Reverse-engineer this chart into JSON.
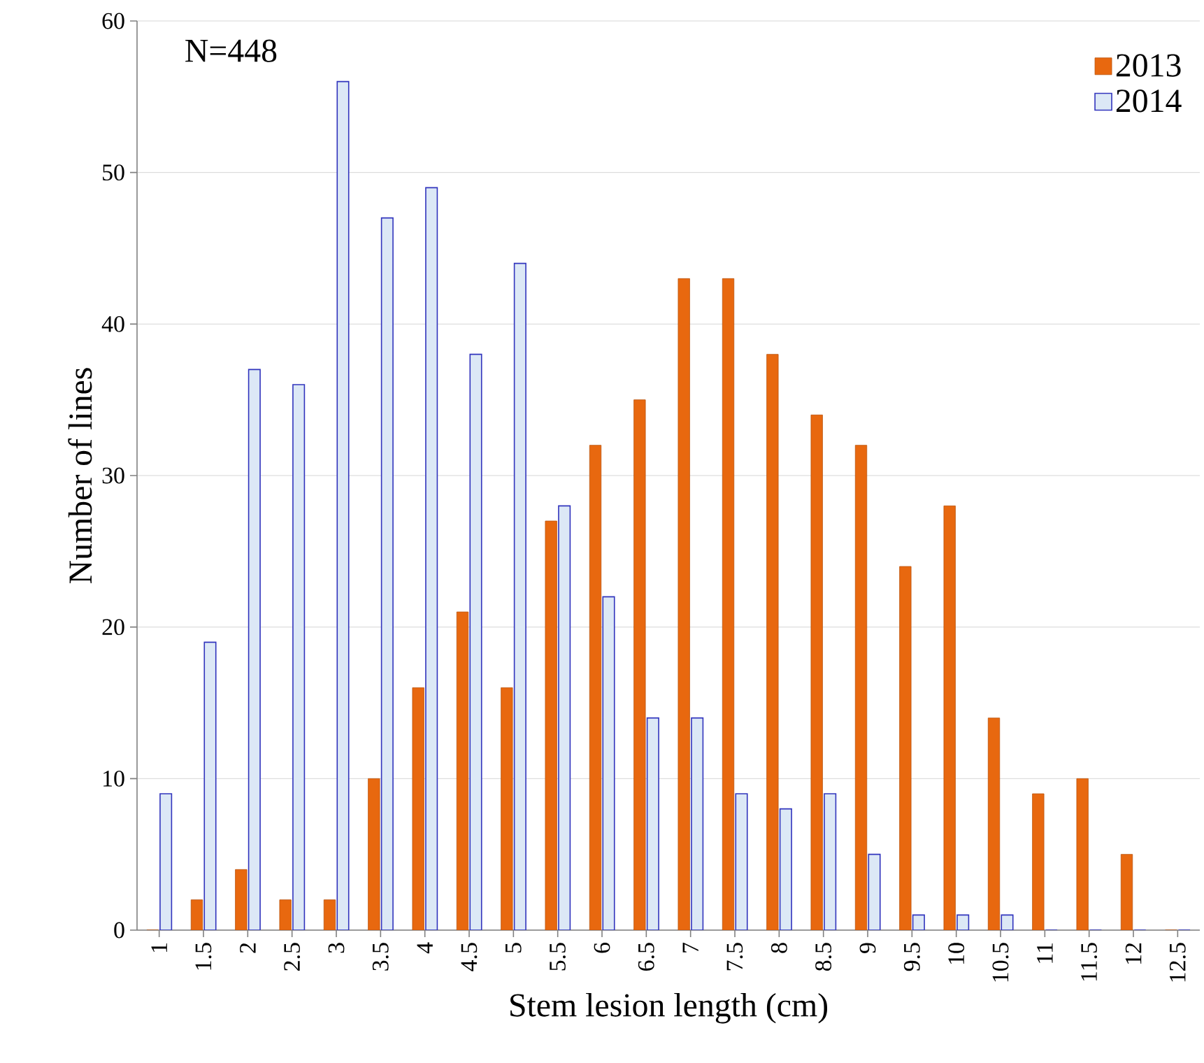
{
  "chart_data": {
    "type": "bar",
    "xlabel": "Stem lesion length (cm)",
    "ylabel": "Number of lines",
    "categories": [
      "1",
      "1.5",
      "2",
      "2.5",
      "3",
      "3.5",
      "4",
      "4.5",
      "5",
      "5.5",
      "6",
      "6.5",
      "7",
      "7.5",
      "8",
      "8.5",
      "9",
      "9.5",
      "10",
      "10.5",
      "11",
      "11.5",
      "12",
      "12.5"
    ],
    "series": [
      {
        "name": "2013",
        "color": "#e8680f",
        "values": [
          0,
          2,
          4,
          2,
          2,
          10,
          16,
          21,
          16,
          27,
          32,
          35,
          43,
          43,
          38,
          34,
          32,
          24,
          28,
          14,
          9,
          10,
          5,
          0
        ]
      },
      {
        "name": "2014",
        "color": "#dce8f6",
        "values": [
          9,
          19,
          37,
          36,
          56,
          47,
          49,
          38,
          44,
          28,
          22,
          14,
          14,
          9,
          8,
          9,
          5,
          1,
          1,
          1,
          0,
          0,
          0,
          0
        ]
      }
    ],
    "ylim": [
      0,
      60
    ],
    "yticks": [
      0,
      10,
      20,
      30,
      40,
      50,
      60
    ],
    "grid": "y",
    "legend": "top right",
    "annotations": [
      "N=448"
    ]
  }
}
